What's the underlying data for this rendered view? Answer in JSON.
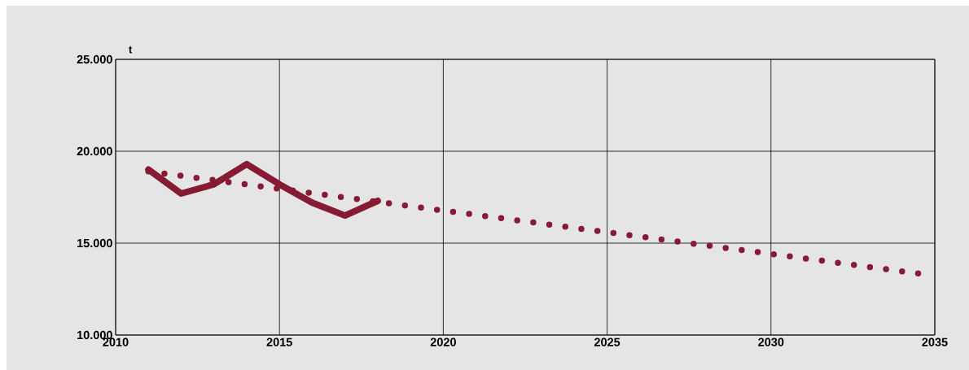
{
  "chart_data": {
    "type": "line",
    "ylabel": "t",
    "xlim": [
      2010,
      2035
    ],
    "xticks": [
      2010,
      2015,
      2020,
      2025,
      2030,
      2035
    ],
    "ylim": [
      10000,
      25000
    ],
    "yticks": [
      {
        "value": 10000,
        "label": "10.000"
      },
      {
        "value": 15000,
        "label": "15.000"
      },
      {
        "value": 20000,
        "label": "20.000"
      },
      {
        "value": 25000,
        "label": "25.000"
      }
    ],
    "grid": true,
    "series": [
      {
        "color": "#861c33",
        "line_style": "solid",
        "x": [
          2011,
          2012,
          2013,
          2014,
          2015,
          2016,
          2017,
          2018
        ],
        "values": [
          19000,
          17700,
          18200,
          19300,
          18200,
          17200,
          16500,
          17300
        ]
      },
      {
        "color": "#861c33",
        "line_style": "dotted",
        "x": [
          2011,
          2034.5
        ],
        "values": [
          18900,
          13350
        ]
      }
    ]
  }
}
